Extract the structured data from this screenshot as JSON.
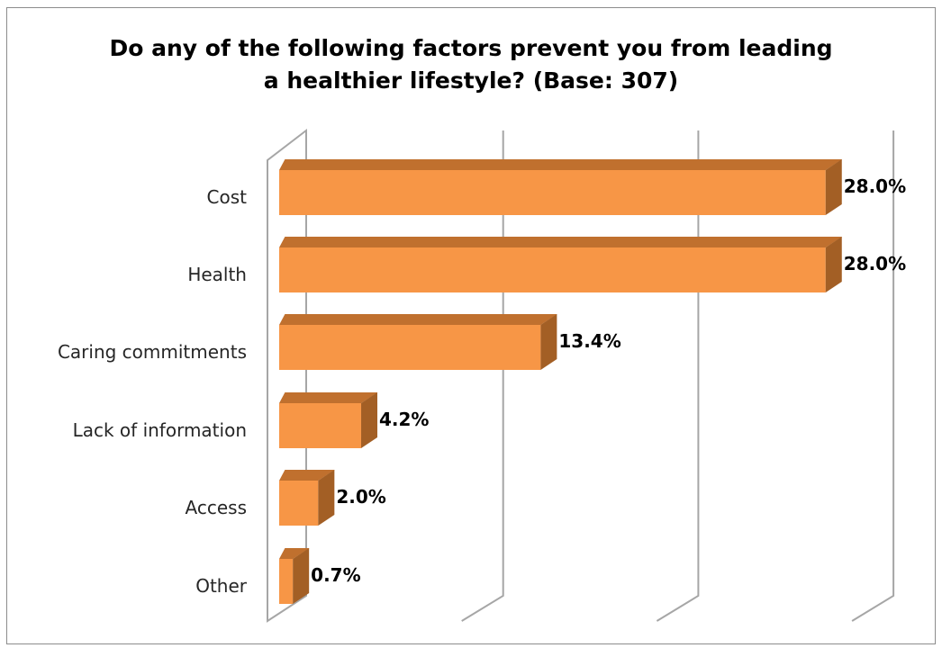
{
  "chart_data": {
    "type": "bar",
    "orientation": "horizontal",
    "style": "3d",
    "title": "Do any of the following factors prevent you from leading a healthier lifestyle? (Base: 307)",
    "title_lines": [
      "Do any of the following factors prevent you from leading",
      "a healthier lifestyle? (Base: 307)"
    ],
    "categories": [
      "Cost",
      "Health",
      "Caring commitments",
      "Lack of information",
      "Access",
      "Other"
    ],
    "values": [
      28.0,
      28.0,
      13.4,
      4.2,
      2.0,
      0.7
    ],
    "value_labels": [
      "28.0%",
      "28.0%",
      "13.4%",
      "4.2%",
      "2.0%",
      "0.7%"
    ],
    "xlim": [
      0,
      30
    ],
    "grid": true,
    "legend": "none",
    "colors": {
      "bar_front": "#f79646",
      "bar_top": "#c0702e",
      "bar_side": "#a35f25",
      "gridline": "#a6a6a6"
    }
  }
}
